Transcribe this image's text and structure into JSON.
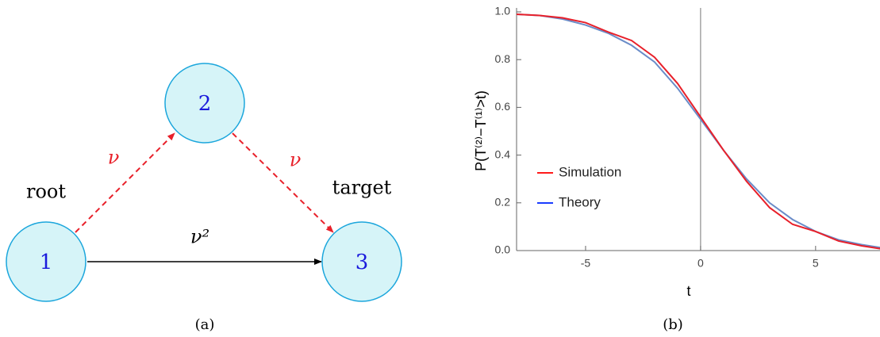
{
  "diagram": {
    "nodes": [
      {
        "label": "1"
      },
      {
        "label": "2"
      },
      {
        "label": "3"
      }
    ],
    "edges": [
      {
        "label": "ν"
      },
      {
        "label": "ν"
      },
      {
        "label": "ν²"
      }
    ],
    "annotations": [
      "root",
      "target"
    ],
    "caption": "(a)"
  },
  "chart_data": {
    "type": "line",
    "x_label": "t",
    "y_label": "P(T⁽²⁾−T⁽¹⁾>t)",
    "caption": "(b)",
    "x": [
      -8,
      -7,
      -6,
      -5,
      -4,
      -3,
      -2,
      -1,
      0,
      1,
      2,
      3,
      4,
      5,
      6,
      7,
      8
    ],
    "series": [
      {
        "name": "Simulation",
        "color": "#e8202a",
        "values": [
          0.99,
          0.985,
          0.975,
          0.955,
          0.915,
          0.88,
          0.81,
          0.7,
          0.56,
          0.42,
          0.29,
          0.18,
          0.11,
          0.08,
          0.04,
          0.02,
          0.005
        ]
      },
      {
        "name": "Theory",
        "color": "#6a8cc8",
        "values": [
          0.99,
          0.985,
          0.97,
          0.945,
          0.91,
          0.86,
          0.79,
          0.68,
          0.55,
          0.42,
          0.3,
          0.2,
          0.13,
          0.08,
          0.045,
          0.025,
          0.01
        ]
      }
    ],
    "xlim": [
      -8,
      7.8
    ],
    "xticks": [
      -5,
      0,
      5
    ],
    "ylim": [
      0,
      1
    ],
    "yticks": [
      {
        "value": 0,
        "label": "0.0"
      },
      0.2,
      0.4,
      0.6,
      0.8,
      {
        "value": 1,
        "label": "1.0"
      }
    ],
    "legend_colors": [
      "#ff1a1a",
      "#1a3cff"
    ]
  }
}
